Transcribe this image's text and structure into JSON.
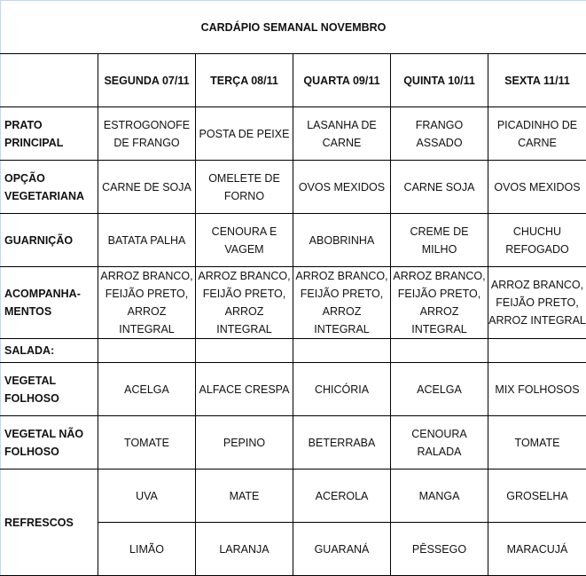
{
  "title": "CARDÁPIO SEMANAL NOVEMBRO",
  "days": [
    "SEGUNDA 07/11",
    "TERÇA 08/11",
    "QUARTA 09/11",
    "QUINTA  10/11",
    "SEXTA 11/11"
  ],
  "rows": [
    {
      "label": "PRATO\nPRINCIPAL",
      "cells": [
        "ESTROGONOFE\nDE FRANGO",
        "POSTA DE PEIXE",
        "LASANHA DE\nCARNE",
        "FRANGO\nASSADO",
        "PICADINHO DE\nCARNE"
      ]
    },
    {
      "label": "OPÇÃO\nVEGETARIANA",
      "cells": [
        "CARNE DE SOJA",
        "OMELETE DE\nFORNO",
        "OVOS MEXIDOS",
        "CARNE SOJA",
        "OVOS MEXIDOS"
      ]
    },
    {
      "label": "GUARNIÇÃO",
      "cells": [
        "BATATA PALHA",
        "CENOURA E\nVAGEM",
        "ABOBRINHA",
        "CREME DE MILHO",
        "CHUCHU\nREFOGADO"
      ]
    },
    {
      "label": "ACOMPANHA-\nMENTOS",
      "cells": [
        "ARROZ BRANCO,\nFEIJÃO PRETO,\nARROZ INTEGRAL",
        "ARROZ BRANCO,\nFEIJÃO PRETO,\nARROZ INTEGRAL",
        "ARROZ BRANCO,\nFEIJÃO PRETO,\nARROZ INTEGRAL",
        "ARROZ BRANCO,\nFEIJÃO PRETO,\nARROZ INTEGRAL",
        "ARROZ BRANCO,\nFEIJÃO PRETO,\nARROZ INTEGRAL"
      ]
    },
    {
      "label": "SALADA:",
      "cells": [
        "",
        "",
        "",
        "",
        ""
      ]
    },
    {
      "label": "VEGETAL\nFOLHOSO",
      "cells": [
        "ACELGA",
        "ALFACE CRESPA",
        "CHICÓRIA",
        "ACELGA",
        "MIX FOLHOSOS"
      ]
    },
    {
      "label": "VEGETAL NÃO\nFOLHOSO",
      "cells": [
        "TOMATE",
        "PEPINO",
        "BETERRABA",
        "CENOURA\nRALADA",
        "TOMATE"
      ]
    }
  ],
  "refrescos": {
    "label": "REFRESCOS",
    "rows": [
      [
        "UVA",
        "MATE",
        "ACEROLA",
        "MANGA",
        "GROSELHA"
      ],
      [
        "LIMÃO",
        "LARANJA",
        "GUARANÁ",
        "PÊSSEGO",
        "MARACUJÁ"
      ]
    ]
  }
}
